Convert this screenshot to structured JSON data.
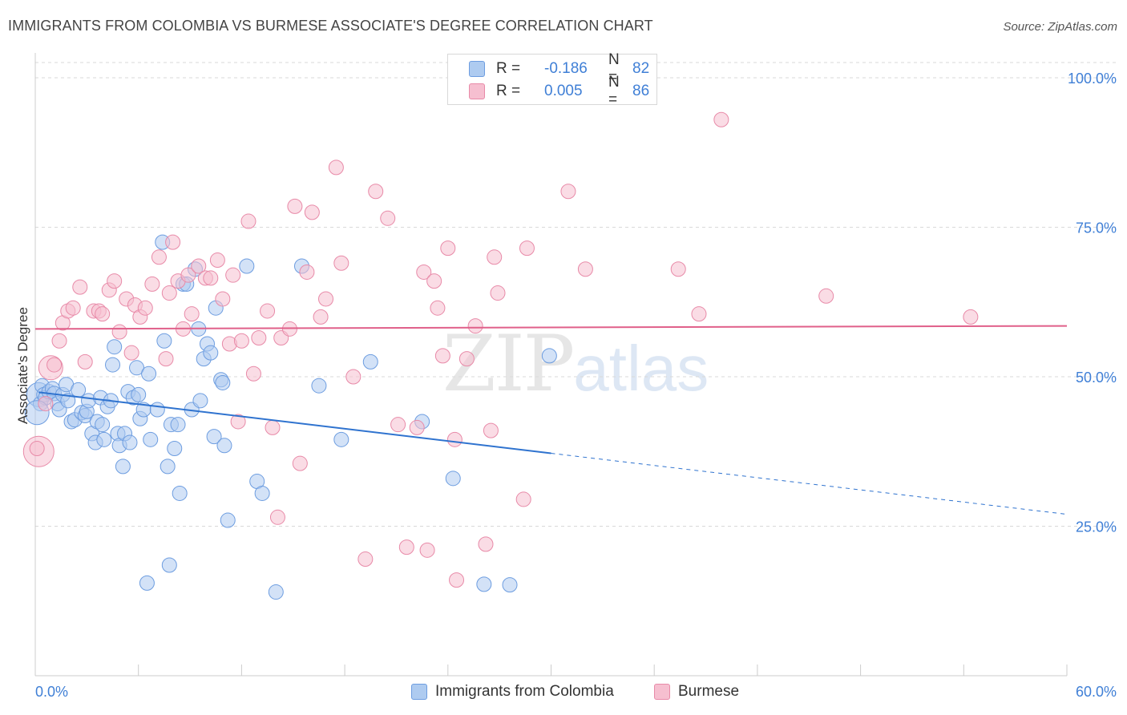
{
  "header": {
    "title": "IMMIGRANTS FROM COLOMBIA VS BURMESE ASSOCIATE'S DEGREE CORRELATION CHART",
    "source": "Source: ZipAtlas.com"
  },
  "watermark": {
    "zip": "ZIP",
    "atlas": "atlas"
  },
  "legend": {
    "rows": [
      {
        "r_label": "R =",
        "r_value": "-0.186",
        "n_label": "N =",
        "n_value": "82"
      },
      {
        "r_label": "R =",
        "r_value": "0.005",
        "n_label": "N =",
        "n_value": "86"
      }
    ]
  },
  "bottom_legend": {
    "series1": "Immigrants from Colombia",
    "series2": "Burmese"
  },
  "colors": {
    "blue_fill": "#aecbf0",
    "blue_stroke": "#6d9de0",
    "blue_line": "#2f73cf",
    "pink_fill": "#f6bfd0",
    "pink_stroke": "#e88aa8",
    "pink_line": "#e0608a",
    "axis_label": "#3f7fd6",
    "grid": "#d9d9d9"
  },
  "chart_data": {
    "type": "scatter",
    "title": "IMMIGRANTS FROM COLOMBIA VS BURMESE ASSOCIATE'S DEGREE CORRELATION CHART",
    "xlabel": "",
    "ylabel": "Associate's Degree",
    "xlim": [
      0,
      60
    ],
    "ylim": [
      0,
      105
    ],
    "x_tick_labels": [
      "0.0%",
      "60.0%"
    ],
    "y_ticks": [
      25,
      50,
      75,
      100
    ],
    "y_tick_labels": [
      "25.0%",
      "50.0%",
      "75.0%",
      "100.0%"
    ],
    "grid": true,
    "legend_position": "top-center",
    "series": [
      {
        "name": "Immigrants from Colombia",
        "color": "#aecbf0",
        "r": -0.186,
        "n": 82,
        "trend": {
          "x0": 0.2,
          "y0": 47.4,
          "x1": 30.0,
          "y1": 37.2,
          "dashed_to_x": 60,
          "dashed_to_y": 27.0
        },
        "points": [
          [
            0.2,
            47.0
          ],
          [
            0.3,
            45.5
          ],
          [
            0.4,
            48.5
          ],
          [
            0.5,
            47.0
          ],
          [
            0.6,
            46.5
          ],
          [
            0.8,
            47.5
          ],
          [
            1.0,
            48.0
          ],
          [
            1.1,
            47.2
          ],
          [
            1.3,
            45.5
          ],
          [
            1.4,
            44.5
          ],
          [
            1.6,
            47.0
          ],
          [
            1.8,
            48.7
          ],
          [
            1.9,
            46.0
          ],
          [
            2.1,
            42.5
          ],
          [
            2.3,
            42.8
          ],
          [
            2.5,
            47.8
          ],
          [
            2.7,
            44.0
          ],
          [
            2.9,
            43.5
          ],
          [
            3.0,
            44.2
          ],
          [
            3.1,
            46.0
          ],
          [
            3.3,
            40.5
          ],
          [
            3.5,
            39.0
          ],
          [
            3.6,
            42.5
          ],
          [
            3.8,
            46.5
          ],
          [
            3.9,
            42.0
          ],
          [
            4.0,
            39.5
          ],
          [
            4.2,
            45.0
          ],
          [
            4.4,
            46.0
          ],
          [
            4.5,
            52.0
          ],
          [
            4.6,
            55.0
          ],
          [
            4.8,
            40.5
          ],
          [
            4.9,
            38.5
          ],
          [
            5.1,
            35.0
          ],
          [
            5.2,
            40.5
          ],
          [
            5.4,
            47.5
          ],
          [
            5.5,
            39.0
          ],
          [
            5.7,
            46.5
          ],
          [
            5.9,
            51.5
          ],
          [
            6.0,
            47.0
          ],
          [
            6.1,
            43.0
          ],
          [
            6.3,
            44.5
          ],
          [
            6.5,
            15.5
          ],
          [
            6.6,
            50.5
          ],
          [
            6.7,
            39.5
          ],
          [
            7.1,
            44.5
          ],
          [
            7.4,
            72.5
          ],
          [
            7.5,
            56.0
          ],
          [
            7.7,
            35.0
          ],
          [
            7.8,
            18.5
          ],
          [
            7.9,
            42.0
          ],
          [
            8.1,
            38.0
          ],
          [
            8.3,
            42.0
          ],
          [
            8.4,
            30.5
          ],
          [
            8.6,
            65.5
          ],
          [
            8.8,
            65.5
          ],
          [
            9.1,
            44.5
          ],
          [
            9.3,
            68.0
          ],
          [
            9.5,
            58.0
          ],
          [
            9.6,
            46.0
          ],
          [
            9.8,
            53.0
          ],
          [
            10.0,
            55.5
          ],
          [
            10.2,
            54.0
          ],
          [
            10.4,
            40.0
          ],
          [
            10.5,
            61.5
          ],
          [
            11.0,
            38.5
          ],
          [
            11.2,
            26.0
          ],
          [
            10.8,
            49.5
          ],
          [
            10.9,
            49.0
          ],
          [
            12.3,
            68.5
          ],
          [
            12.9,
            32.5
          ],
          [
            13.2,
            30.5
          ],
          [
            14.0,
            14.0
          ],
          [
            15.5,
            68.5
          ],
          [
            16.5,
            48.5
          ],
          [
            17.8,
            39.5
          ],
          [
            19.5,
            52.5
          ],
          [
            22.5,
            42.5
          ],
          [
            24.3,
            33.0
          ],
          [
            26.1,
            15.3
          ],
          [
            27.6,
            15.2
          ],
          [
            29.9,
            53.5
          ],
          [
            0.1,
            44.0
          ]
        ],
        "sizes": {
          "0": 22,
          "81": 22
        }
      },
      {
        "name": "Burmese",
        "color": "#f6bfd0",
        "r": 0.005,
        "n": 86,
        "trend": {
          "x0": 0.0,
          "y0": 58.0,
          "x1": 60.0,
          "y1": 58.5
        },
        "points": [
          [
            0.2,
            37.5
          ],
          [
            0.6,
            45.5
          ],
          [
            0.9,
            51.5
          ],
          [
            1.1,
            52.0
          ],
          [
            1.4,
            56.0
          ],
          [
            1.6,
            59.0
          ],
          [
            1.9,
            61.0
          ],
          [
            2.2,
            61.5
          ],
          [
            2.6,
            65.0
          ],
          [
            2.9,
            52.5
          ],
          [
            3.4,
            61.0
          ],
          [
            3.7,
            61.0
          ],
          [
            3.9,
            60.5
          ],
          [
            4.3,
            64.5
          ],
          [
            4.6,
            66.0
          ],
          [
            4.9,
            57.5
          ],
          [
            5.3,
            63.0
          ],
          [
            5.6,
            54.0
          ],
          [
            5.8,
            62.0
          ],
          [
            6.1,
            60.0
          ],
          [
            6.4,
            61.5
          ],
          [
            6.8,
            65.5
          ],
          [
            7.2,
            70.0
          ],
          [
            7.6,
            53.0
          ],
          [
            7.8,
            64.0
          ],
          [
            8.0,
            72.5
          ],
          [
            8.3,
            66.0
          ],
          [
            8.6,
            58.0
          ],
          [
            8.9,
            67.0
          ],
          [
            9.1,
            60.5
          ],
          [
            9.5,
            68.5
          ],
          [
            9.9,
            66.5
          ],
          [
            10.2,
            66.5
          ],
          [
            10.6,
            69.5
          ],
          [
            10.9,
            63.0
          ],
          [
            11.3,
            55.5
          ],
          [
            11.5,
            67.0
          ],
          [
            11.8,
            42.5
          ],
          [
            12.0,
            56.0
          ],
          [
            12.4,
            76.0
          ],
          [
            12.7,
            50.5
          ],
          [
            13.0,
            56.5
          ],
          [
            13.5,
            61.0
          ],
          [
            13.8,
            41.5
          ],
          [
            14.1,
            26.5
          ],
          [
            14.3,
            56.5
          ],
          [
            14.8,
            58.0
          ],
          [
            15.1,
            78.5
          ],
          [
            15.4,
            35.5
          ],
          [
            15.8,
            67.5
          ],
          [
            16.1,
            77.5
          ],
          [
            16.6,
            60.0
          ],
          [
            16.9,
            63.0
          ],
          [
            17.5,
            85.0
          ],
          [
            17.8,
            69.0
          ],
          [
            18.5,
            50.0
          ],
          [
            19.2,
            19.5
          ],
          [
            19.8,
            81.0
          ],
          [
            20.5,
            76.5
          ],
          [
            21.1,
            42.0
          ],
          [
            21.6,
            21.5
          ],
          [
            22.2,
            41.5
          ],
          [
            22.6,
            67.5
          ],
          [
            22.8,
            21.0
          ],
          [
            23.2,
            66.0
          ],
          [
            23.4,
            61.5
          ],
          [
            23.7,
            53.5
          ],
          [
            24.0,
            71.5
          ],
          [
            24.4,
            39.5
          ],
          [
            24.5,
            16.0
          ],
          [
            25.1,
            53.0
          ],
          [
            25.6,
            58.5
          ],
          [
            26.2,
            22.0
          ],
          [
            26.5,
            41.0
          ],
          [
            26.7,
            70.0
          ],
          [
            26.9,
            64.0
          ],
          [
            28.4,
            29.5
          ],
          [
            28.6,
            71.5
          ],
          [
            31.0,
            81.0
          ],
          [
            32.0,
            68.0
          ],
          [
            37.4,
            68.0
          ],
          [
            38.6,
            60.5
          ],
          [
            39.9,
            93.0
          ],
          [
            46.0,
            63.5
          ],
          [
            54.4,
            60.0
          ],
          [
            0.1,
            38.0
          ]
        ],
        "sizes": {
          "0": 30,
          "2": 22
        }
      }
    ]
  }
}
